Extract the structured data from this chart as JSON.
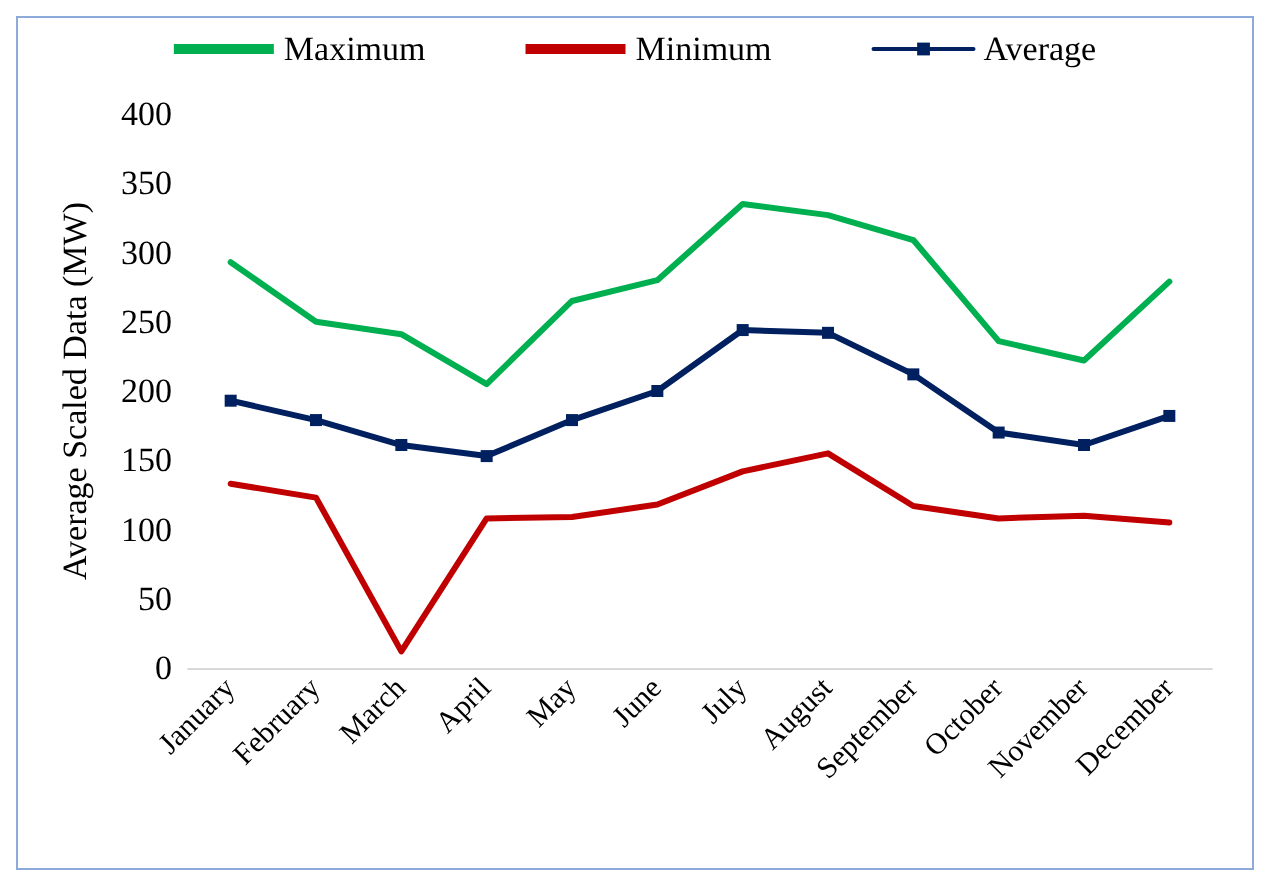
{
  "chart_data": {
    "type": "line",
    "ylabel": "Average Scaled Data (MW)",
    "categories": [
      "January",
      "February",
      "March",
      "April",
      "May",
      "June",
      "July",
      "August",
      "September",
      "October",
      "November",
      "December"
    ],
    "series": [
      {
        "name": "Maximum",
        "color": "#00b050",
        "marker": "none",
        "values": [
          293,
          250,
          241,
          205,
          265,
          280,
          335,
          327,
          309,
          236,
          222,
          279
        ]
      },
      {
        "name": "Minimum",
        "color": "#c00000",
        "marker": "none",
        "values": [
          133,
          123,
          12,
          108,
          109,
          118,
          142,
          155,
          117,
          108,
          110,
          105
        ]
      },
      {
        "name": "Average",
        "color": "#002060",
        "marker": "square",
        "values": [
          193,
          179,
          161,
          153,
          179,
          200,
          244,
          242,
          212,
          170,
          161,
          182
        ]
      }
    ],
    "ylim": [
      0,
      400
    ],
    "yticks": [
      0,
      50,
      100,
      150,
      200,
      250,
      300,
      350,
      400
    ],
    "grid": false,
    "legend": "top"
  }
}
